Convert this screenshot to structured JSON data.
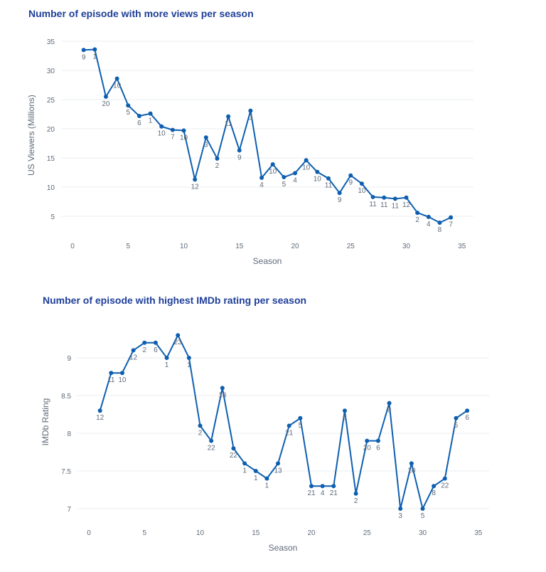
{
  "chart_data": [
    {
      "type": "line",
      "title": "Number of episode with more views per season",
      "xlabel": "Season",
      "ylabel": "US Viewers (Millions)",
      "xlim": [
        0,
        35
      ],
      "ylim": [
        2,
        35
      ],
      "xticks": [
        0,
        5,
        10,
        15,
        20,
        25,
        30,
        35
      ],
      "yticks": [
        5,
        10,
        15,
        20,
        25,
        30,
        35
      ],
      "grid": true,
      "series": [
        {
          "x": [
            1,
            2,
            3,
            4,
            5,
            6,
            7,
            8,
            9,
            10,
            11,
            12,
            13,
            14,
            15,
            16,
            17,
            18,
            19,
            20,
            21,
            22,
            23,
            24,
            25,
            26,
            27,
            28,
            29,
            30,
            31,
            32,
            33,
            34
          ],
          "values": [
            33.5,
            33.6,
            25.5,
            28.6,
            24,
            22.2,
            22.6,
            20.4,
            19.8,
            19.7,
            11.3,
            18.5,
            14.9,
            22.1,
            16.3,
            23.1,
            11.6,
            13.9,
            11.7,
            12.4,
            14.6,
            12.6,
            11.5,
            9,
            12,
            10.6,
            8.3,
            8.2,
            8,
            8.2,
            5.6,
            4.9,
            3.9,
            4.8
          ],
          "labels": [
            "9",
            "1",
            "20",
            "10",
            "5",
            "6",
            "1",
            "10",
            "7",
            "10",
            "12",
            "3",
            "2",
            "11",
            "9",
            "3",
            "4",
            "10",
            "5",
            "4",
            "10",
            "10",
            "11",
            "9",
            "9",
            "10",
            "11",
            "11",
            "11",
            "12",
            "2",
            "4",
            "8",
            "7"
          ]
        }
      ]
    },
    {
      "type": "line",
      "title": "Number of episode with highest IMDb rating per season",
      "xlabel": "Season",
      "ylabel": "IMDb Rating",
      "xlim": [
        0,
        35
      ],
      "ylim": [
        6.95,
        9.5
      ],
      "xticks": [
        0,
        5,
        10,
        15,
        20,
        25,
        30,
        35
      ],
      "yticks": [
        7,
        7.5,
        8,
        8.5,
        9
      ],
      "grid": true,
      "series": [
        {
          "x": [
            1,
            2,
            3,
            4,
            5,
            6,
            7,
            8,
            9,
            10,
            11,
            12,
            13,
            14,
            15,
            16,
            17,
            18,
            19,
            20,
            21,
            22,
            23,
            24,
            25,
            26,
            27,
            28,
            29,
            30,
            31,
            32,
            33,
            34
          ],
          "values": [
            8.3,
            8.8,
            8.8,
            9.1,
            9.2,
            9.2,
            9,
            9.3,
            9,
            8.1,
            7.9,
            8.6,
            7.8,
            7.6,
            7.5,
            7.4,
            7.6,
            8.1,
            8.2,
            7.3,
            7.3,
            7.3,
            8.3,
            7.2,
            7.9,
            7.9,
            8.4,
            7,
            7.6,
            7,
            7.3,
            7.4,
            8.2,
            8.3
          ],
          "labels": [
            "12",
            "11",
            "10",
            "12",
            "2",
            "6",
            "1",
            "23",
            "1",
            "2",
            "22",
            "13",
            "22",
            "1",
            "1",
            "1",
            "13",
            "21",
            "5",
            "21",
            "4",
            "21",
            "8",
            "2",
            "20",
            "6",
            "9",
            "3",
            "10",
            "5",
            "8",
            "22",
            "5",
            "6"
          ]
        }
      ]
    }
  ]
}
